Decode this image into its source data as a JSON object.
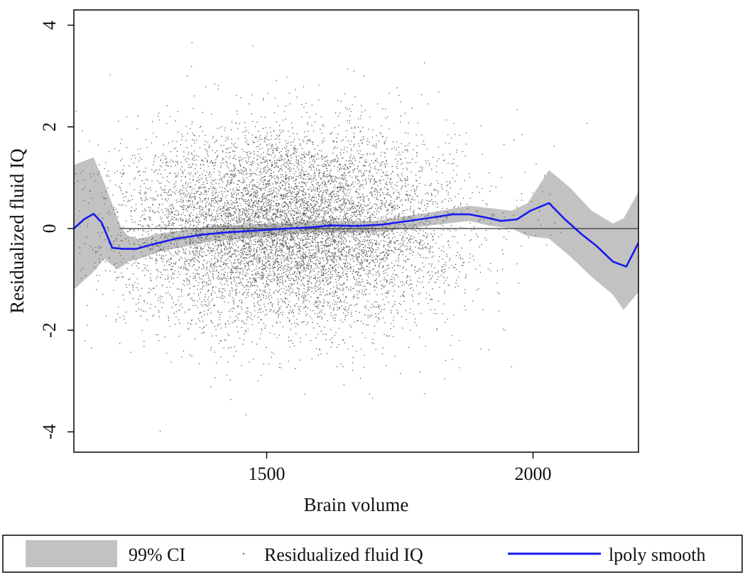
{
  "chart_data": {
    "type": "scatter",
    "title": "",
    "xlabel": "Brain volume",
    "ylabel": "Residualized fluid IQ",
    "xlim": [
      1138,
      2198
    ],
    "ylim": [
      -4.4,
      4.3
    ],
    "x_ticks": [
      1500,
      2000
    ],
    "x_tick_labels": [
      "1500",
      "2000"
    ],
    "y_ticks": [
      -4,
      -2,
      0,
      2,
      4
    ],
    "y_tick_labels": [
      "-4",
      "-2",
      "0",
      "2",
      "4"
    ],
    "reference_line_y": 0,
    "reference_line_x_range": [
      1225,
      2198
    ],
    "grid": false,
    "legend_position": "bottom",
    "colors": {
      "scatter": "#5a5a5a",
      "smooth": "#1a1aee",
      "ci_band": "#c2c2c2",
      "reference_line": "#444444"
    },
    "scatter_summary": {
      "x_center": 1540,
      "x_sd": 155,
      "y_mean": 0,
      "y_sd": 0.95
    },
    "series": [
      {
        "name": "99% CI",
        "kind": "band",
        "x": [
          1138,
          1175,
          1195,
          1220,
          1228,
          1240,
          1260,
          1300,
          1400,
          1500,
          1600,
          1700,
          1800,
          1880,
          1920,
          1960,
          1990,
          2030,
          2070,
          2110,
          2150,
          2170,
          2198
        ],
        "upper": [
          1.25,
          1.4,
          0.9,
          0.2,
          0.0,
          -0.15,
          -0.2,
          -0.1,
          0.05,
          0.1,
          0.15,
          0.15,
          0.3,
          0.45,
          0.4,
          0.35,
          0.5,
          1.15,
          0.8,
          0.35,
          0.1,
          0.2,
          0.72
        ],
        "lower": [
          -1.2,
          -0.85,
          -0.6,
          -0.8,
          -0.75,
          -0.65,
          -0.6,
          -0.45,
          -0.25,
          -0.15,
          -0.08,
          -0.08,
          0.05,
          0.15,
          0.05,
          0.0,
          -0.15,
          -0.2,
          -0.55,
          -0.95,
          -1.3,
          -1.6,
          -1.25
        ]
      },
      {
        "name": "Residualized fluid IQ",
        "kind": "scatter",
        "n_points": 9000
      },
      {
        "name": "lpoly smooth",
        "kind": "line",
        "x": [
          1138,
          1157,
          1175,
          1190,
          1210,
          1230,
          1255,
          1290,
          1330,
          1380,
          1420,
          1480,
          1540,
          1580,
          1620,
          1670,
          1720,
          1760,
          1800,
          1850,
          1880,
          1910,
          1940,
          1970,
          1995,
          2030,
          2060,
          2090,
          2120,
          2150,
          2175,
          2198
        ],
        "y": [
          0.0,
          0.18,
          0.29,
          0.12,
          -0.38,
          -0.4,
          -0.4,
          -0.3,
          -0.2,
          -0.12,
          -0.08,
          -0.04,
          0.0,
          0.02,
          0.06,
          0.05,
          0.08,
          0.14,
          0.2,
          0.28,
          0.28,
          0.22,
          0.15,
          0.18,
          0.35,
          0.5,
          0.18,
          -0.1,
          -0.35,
          -0.65,
          -0.75,
          -0.28
        ]
      }
    ]
  }
}
